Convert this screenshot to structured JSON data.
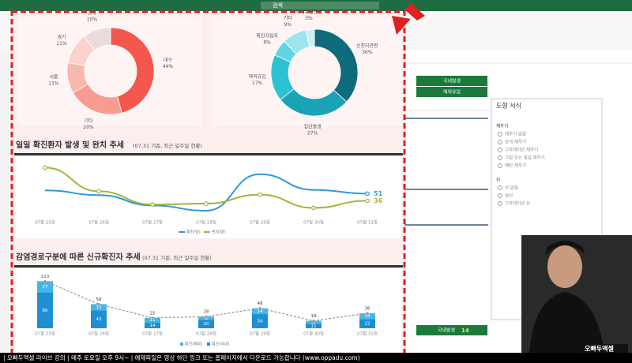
{
  "window": {
    "search": "검색"
  },
  "dashboard": {
    "donut_region": {
      "type": "pie",
      "categories": [
        "대구",
        "기타",
        "서울",
        "경기",
        "경북"
      ],
      "values": [
        44,
        20,
        11,
        11,
        10
      ],
      "value_labels": [
        "44%",
        "20%",
        "11%",
        "11%",
        "10%"
      ],
      "colors": [
        "#f4574b",
        "#f89c92",
        "#fab7ae",
        "#fcd2cc",
        "#eadcdc"
      ]
    },
    "donut_route": {
      "type": "pie",
      "categories": [
        "신천지관련",
        "집단발생",
        "해외유입",
        "확진자접촉",
        "기타",
        "해외유입관련"
      ],
      "values": [
        36,
        27,
        17,
        6,
        9,
        3
      ],
      "value_labels": [
        "36%",
        "27%",
        "17%",
        "6%",
        "9%",
        "3%"
      ],
      "colors": [
        "#0e6b7b",
        "#1aa3b6",
        "#2cc2d3",
        "#62d5e1",
        "#9de5ed",
        "#cdeff3"
      ]
    },
    "line_chart": {
      "type": "line",
      "title": "일일 확진환자 발생 및 완치 추세",
      "subtitle": "(07.31 기준, 최근 일주일 현황)",
      "categories": [
        "07월 25일",
        "07월 26일",
        "07월 27일",
        "07월 28일",
        "07월 29일",
        "07월 30일",
        "07월 31일"
      ],
      "series": [
        {
          "name": "확진(명)",
          "color": "#2e9ad6",
          "values": [
            58,
            48,
            26,
            15,
            92,
            59,
            51
          ]
        },
        {
          "name": "완치(명)",
          "color": "#a3b43c",
          "values": [
            106,
            56,
            28,
            30,
            49,
            21,
            36
          ]
        }
      ],
      "ylim": [
        0,
        120
      ]
    },
    "bar_chart": {
      "type": "bar",
      "title": "감염경로구분에 따른 신규확진자 추세",
      "subtitle": "(07.31 기준, 최근 일주일 현황)",
      "categories": [
        "07월 25일",
        "07월 26일",
        "07월 27일",
        "07월 28일",
        "07월 29일",
        "07월 30일",
        "07월 31일"
      ],
      "series": [
        {
          "name": "확진(국내)",
          "color": "#1f8fd1",
          "values": [
            86,
            43,
            14,
            20,
            34,
            11,
            22
          ]
        },
        {
          "name": "확진(해외)",
          "color": "#46b6e8",
          "values": [
            27,
            15,
            11,
            8,
            14,
            7,
            14
          ]
        }
      ],
      "totals": [
        113,
        58,
        25,
        28,
        48,
        18,
        36
      ],
      "ylim": [
        0,
        125
      ]
    }
  },
  "tiles": {
    "domestic": "국내발생",
    "overseas": "해외유입",
    "bottom_label": "국내발생",
    "bottom_value": 14
  },
  "side_panel": {
    "title": "도형 서식",
    "items": [
      "채우기",
      "채우기 없음",
      "단색 채우기",
      "그라데이션 채우기",
      "그림 또는 질감 채우기",
      "패턴 채우기",
      "선",
      "선 없음",
      "실선",
      "그라데이션 선"
    ]
  },
  "logo": "오빠두엑셀",
  "ticker": "| 오빠두엑셀 라이브 강의 | 매주 토요일 오후 9시~ | 예제파일은 영상 하단 링크 또는 홈페이지에서 다운로드 가능합니다 (www.oppadu.com)"
}
